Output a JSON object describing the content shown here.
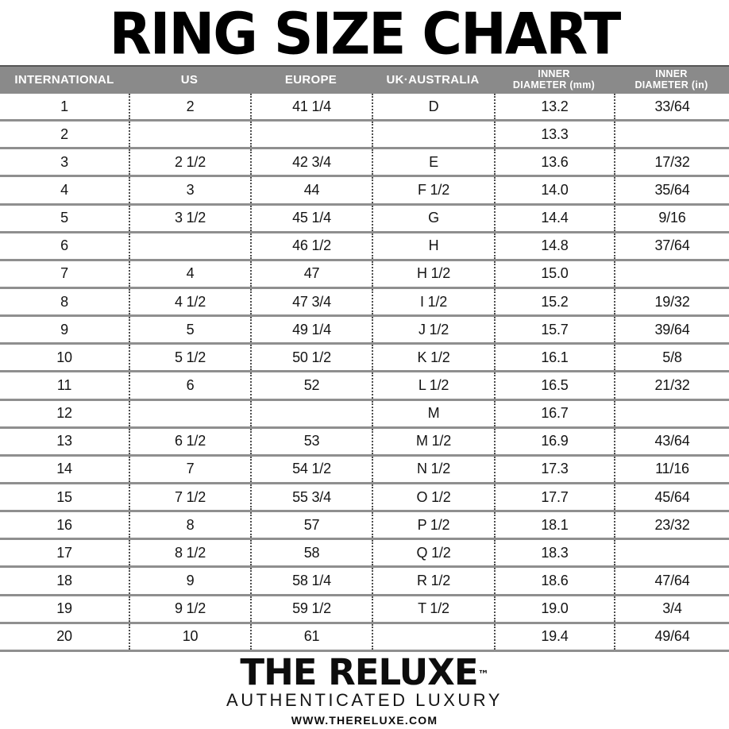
{
  "page": {
    "title": "RING SIZE CHART"
  },
  "colors": {
    "background": "#ffffff",
    "header_bg": "#8a8a8a",
    "header_text": "#ffffff",
    "row_line": "#8f8f8f",
    "dotted_line": "#4d4d4d",
    "text": "#141414"
  },
  "chart_data": {
    "type": "table",
    "title": "RING SIZE CHART",
    "columns": [
      "INTERNATIONAL",
      "US",
      "EUROPE",
      "UK·AUSTRALIA",
      "INNER\nDIAMETER (mm)",
      "INNER\nDIAMETER (in)"
    ],
    "rows": [
      [
        "1",
        "2",
        "41 1/4",
        "D",
        "13.2",
        "33/64"
      ],
      [
        "2",
        "",
        "",
        "",
        "13.3",
        ""
      ],
      [
        "3",
        "2 1/2",
        "42 3/4",
        "E",
        "13.6",
        "17/32"
      ],
      [
        "4",
        "3",
        "44",
        "F 1/2",
        "14.0",
        "35/64"
      ],
      [
        "5",
        "3 1/2",
        "45 1/4",
        "G",
        "14.4",
        "9/16"
      ],
      [
        "6",
        "",
        "46 1/2",
        "H",
        "14.8",
        "37/64"
      ],
      [
        "7",
        "4",
        "47",
        "H 1/2",
        "15.0",
        ""
      ],
      [
        "8",
        "4 1/2",
        "47 3/4",
        "I 1/2",
        "15.2",
        "19/32"
      ],
      [
        "9",
        "5",
        "49 1/4",
        "J 1/2",
        "15.7",
        "39/64"
      ],
      [
        "10",
        "5 1/2",
        "50 1/2",
        "K 1/2",
        "16.1",
        "5/8"
      ],
      [
        "11",
        "6",
        "52",
        "L 1/2",
        "16.5",
        "21/32"
      ],
      [
        "12",
        "",
        "",
        "M",
        "16.7",
        ""
      ],
      [
        "13",
        "6 1/2",
        "53",
        "M 1/2",
        "16.9",
        "43/64"
      ],
      [
        "14",
        "7",
        "54 1/2",
        "N 1/2",
        "17.3",
        "11/16"
      ],
      [
        "15",
        "7 1/2",
        "55 3/4",
        "O 1/2",
        "17.7",
        "45/64"
      ],
      [
        "16",
        "8",
        "57",
        "P 1/2",
        "18.1",
        "23/32"
      ],
      [
        "17",
        "8 1/2",
        "58",
        "Q 1/2",
        "18.3",
        ""
      ],
      [
        "18",
        "9",
        "58 1/4",
        "R 1/2",
        "18.6",
        "47/64"
      ],
      [
        "19",
        "9 1/2",
        "59 1/2",
        "T 1/2",
        "19.0",
        "3/4"
      ],
      [
        "20",
        "10",
        "61",
        "",
        "19.4",
        "49/64"
      ]
    ]
  },
  "footer": {
    "brand": "THE RELUXE",
    "trademark": "™",
    "tagline": "AUTHENTICATED LUXURY",
    "website": "WWW.THERELUXE.COM"
  }
}
